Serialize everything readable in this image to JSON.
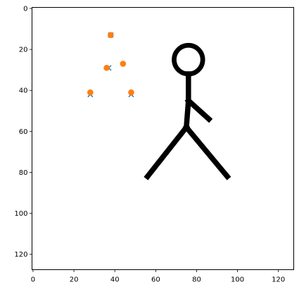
{
  "chart_data": {
    "type": "scatter",
    "title": "",
    "xlabel": "",
    "ylabel": "",
    "xlim": [
      -0.5,
      127.5
    ],
    "ylim": [
      127.5,
      -0.5
    ],
    "y_inverted": true,
    "grid": false,
    "x_ticks": [
      0,
      20,
      40,
      60,
      80,
      100,
      120
    ],
    "y_ticks": [
      0,
      20,
      40,
      60,
      80,
      100,
      120
    ],
    "x_tick_labels": [
      "0",
      "20",
      "40",
      "60",
      "80",
      "100",
      "120"
    ],
    "y_tick_labels": [
      "0",
      "20",
      "40",
      "60",
      "80",
      "100",
      "120"
    ],
    "background_image": {
      "content": "stick-figure",
      "color": "#000000",
      "head": {
        "cx": 76,
        "cy": 25,
        "r": 7
      },
      "strokes": [
        [
          [
            76,
            32
          ],
          [
            76,
            45
          ],
          [
            75,
            58
          ]
        ],
        [
          [
            76,
            45
          ],
          [
            86,
            54
          ]
        ],
        [
          [
            75,
            58
          ],
          [
            56,
            82
          ]
        ],
        [
          [
            75,
            58
          ],
          [
            95,
            82
          ]
        ]
      ]
    },
    "series": [
      {
        "marker": "x",
        "color": "#1f77b4",
        "points": [
          [
            38,
            13
          ],
          [
            37,
            29
          ],
          [
            28,
            42
          ],
          [
            48,
            42
          ]
        ]
      },
      {
        "marker": "o",
        "color": "#ff7f0e",
        "points": [
          [
            38,
            13
          ],
          [
            36,
            29
          ],
          [
            44,
            27
          ],
          [
            28,
            41
          ],
          [
            48,
            41
          ]
        ]
      }
    ]
  }
}
